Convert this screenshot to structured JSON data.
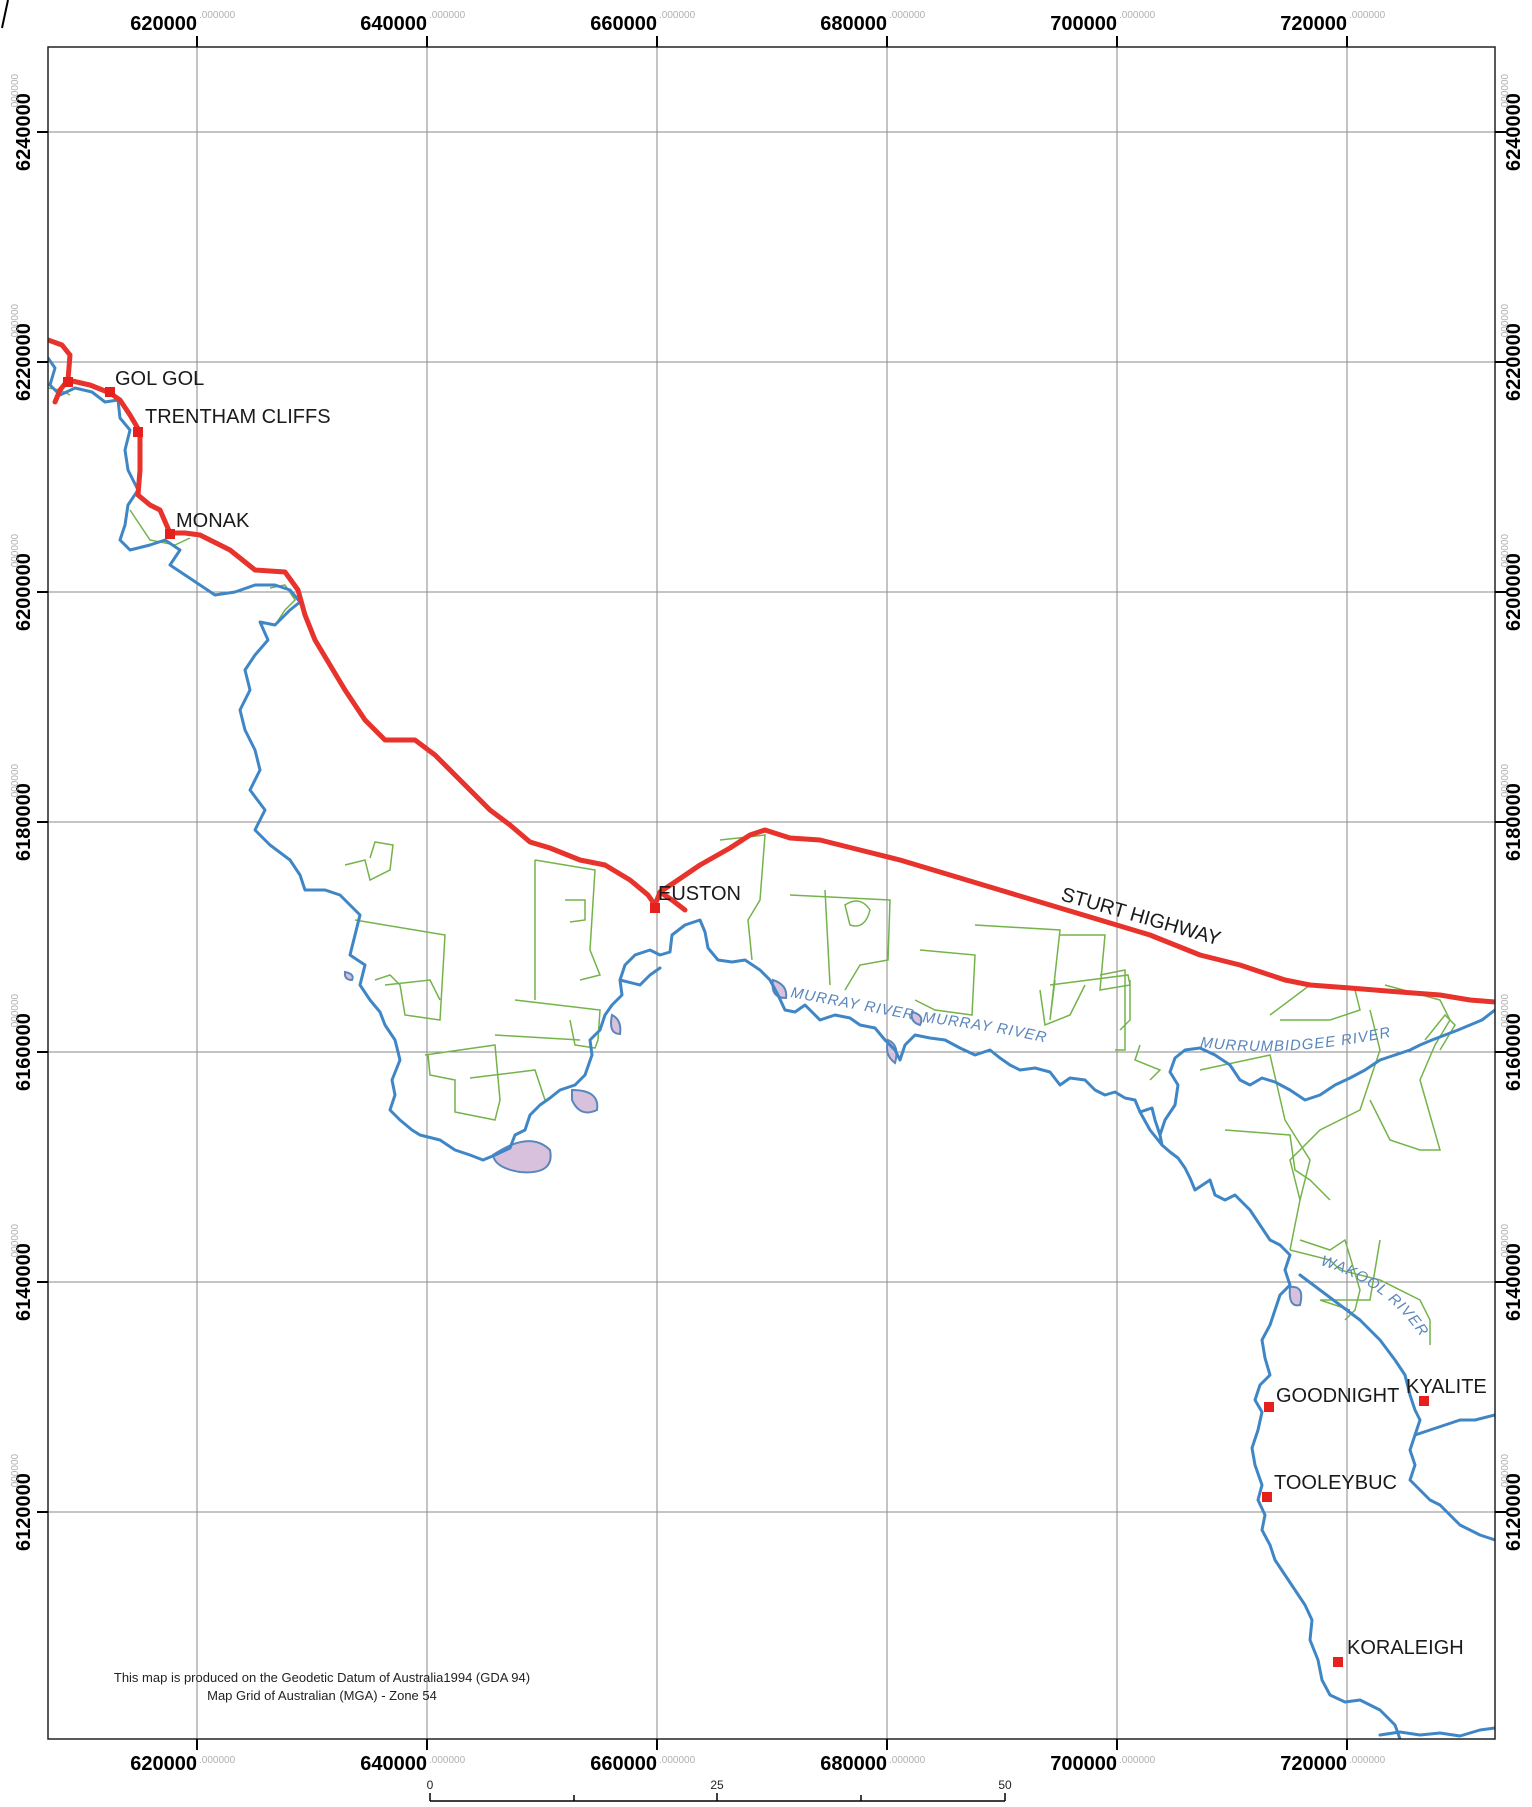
{
  "map": {
    "frame_color": "#222222",
    "grid_color": "#8a8a8a",
    "road_color": "#e8322c",
    "river_color": "#3f86c6",
    "parcel_color": "#74b34a",
    "wetland_fill": "#d8c1dd",
    "town_marker_color": "#e5201d"
  },
  "axes": {
    "x_ticks": [
      {
        "main": "620000",
        "dec": ".000000"
      },
      {
        "main": "640000",
        "dec": ".000000"
      },
      {
        "main": "660000",
        "dec": ".000000"
      },
      {
        "main": "680000",
        "dec": ".000000"
      },
      {
        "main": "700000",
        "dec": ".000000"
      },
      {
        "main": "720000",
        "dec": ".000000"
      }
    ],
    "y_ticks": [
      {
        "main": "6240000",
        "dec": ".000000"
      },
      {
        "main": "6220000",
        "dec": ".000000"
      },
      {
        "main": "6200000",
        "dec": ".000000"
      },
      {
        "main": "6180000",
        "dec": ".000000"
      },
      {
        "main": "6160000",
        "dec": ".000000"
      },
      {
        "main": "6140000",
        "dec": ".000000"
      },
      {
        "main": "6120000",
        "dec": ".000000"
      }
    ]
  },
  "towns": [
    {
      "id": "gol-gol",
      "name": "GOL GOL"
    },
    {
      "id": "trentham-cliffs",
      "name": "TRENTHAM CLIFFS"
    },
    {
      "id": "monak",
      "name": "MONAK"
    },
    {
      "id": "euston",
      "name": "EUSTON"
    },
    {
      "id": "goodnight",
      "name": "GOODNIGHT"
    },
    {
      "id": "kyalite",
      "name": "KYALITE"
    },
    {
      "id": "tooleybuc",
      "name": "TOOLEYBUC"
    },
    {
      "id": "koraleigh",
      "name": "KORALEIGH"
    }
  ],
  "roads": {
    "sturt": "STURT HIGHWAY"
  },
  "rivers": {
    "murray_1": "MURRAY RIVER",
    "murray_2": "MURRAY RIVER",
    "murrumbidgee": "MURRUMBIDGEE RIVER",
    "wakool": "WAKOOL RIVER"
  },
  "note": {
    "line1": "This map is produced on the Geodetic Datum of Australia1994 (GDA 94)",
    "line2": "Map Grid of Australian (MGA) - Zone 54"
  },
  "scale_bar": {
    "labels": [
      "0",
      "25",
      "50"
    ]
  }
}
